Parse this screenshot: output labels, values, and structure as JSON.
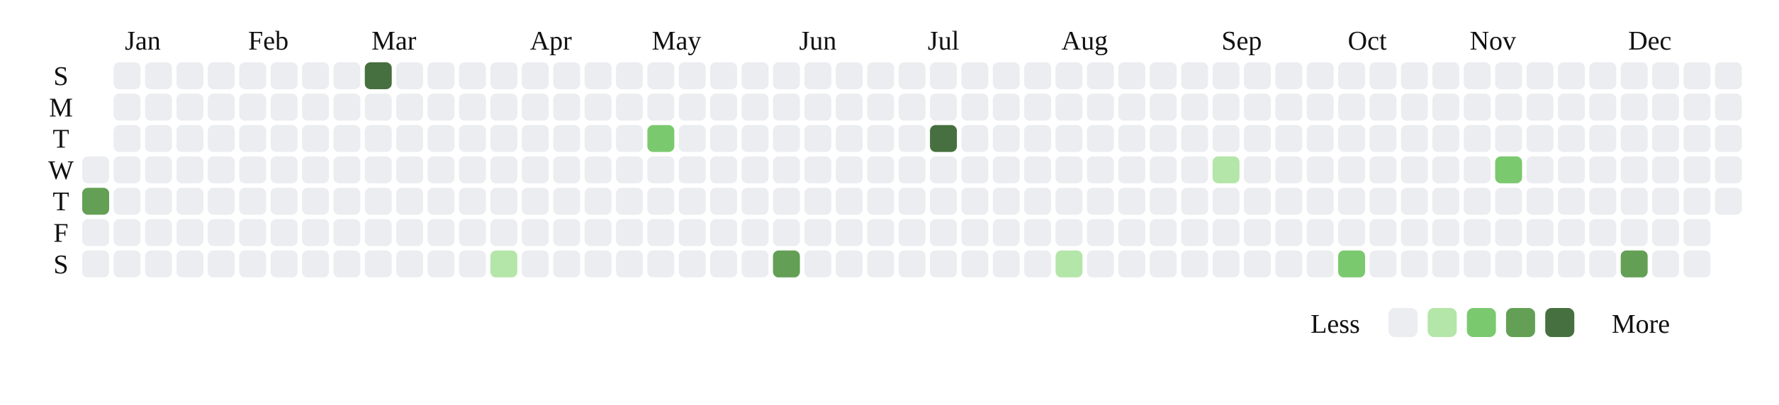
{
  "chart_data": {
    "type": "heatmap",
    "title": "",
    "weekday_labels": [
      "S",
      "M",
      "T",
      "W",
      "T",
      "F",
      "S"
    ],
    "month_labels": [
      "Jan",
      "Feb",
      "Mar",
      "Apr",
      "May",
      "Jun",
      "Jul",
      "Aug",
      "Sep",
      "Oct",
      "Nov",
      "Dec"
    ],
    "levels": 5,
    "colors": [
      "#ebedf0",
      "#b3e6a8",
      "#7bc96f",
      "#63a055",
      "#46703f"
    ],
    "legend": {
      "less_label": "Less",
      "more_label": "More"
    },
    "active_days": [
      {
        "week": 0,
        "weekday": 4,
        "level": 3
      },
      {
        "week": 9,
        "weekday": 0,
        "level": 4
      },
      {
        "week": 13,
        "weekday": 6,
        "level": 1
      },
      {
        "week": 18,
        "weekday": 2,
        "level": 2
      },
      {
        "week": 22,
        "weekday": 6,
        "level": 3
      },
      {
        "week": 27,
        "weekday": 2,
        "level": 4
      },
      {
        "week": 31,
        "weekday": 6,
        "level": 1
      },
      {
        "week": 36,
        "weekday": 3,
        "level": 1
      },
      {
        "week": 40,
        "weekday": 6,
        "level": 2
      },
      {
        "week": 45,
        "weekday": 3,
        "level": 2
      },
      {
        "week": 49,
        "weekday": 6,
        "level": 3
      }
    ]
  }
}
